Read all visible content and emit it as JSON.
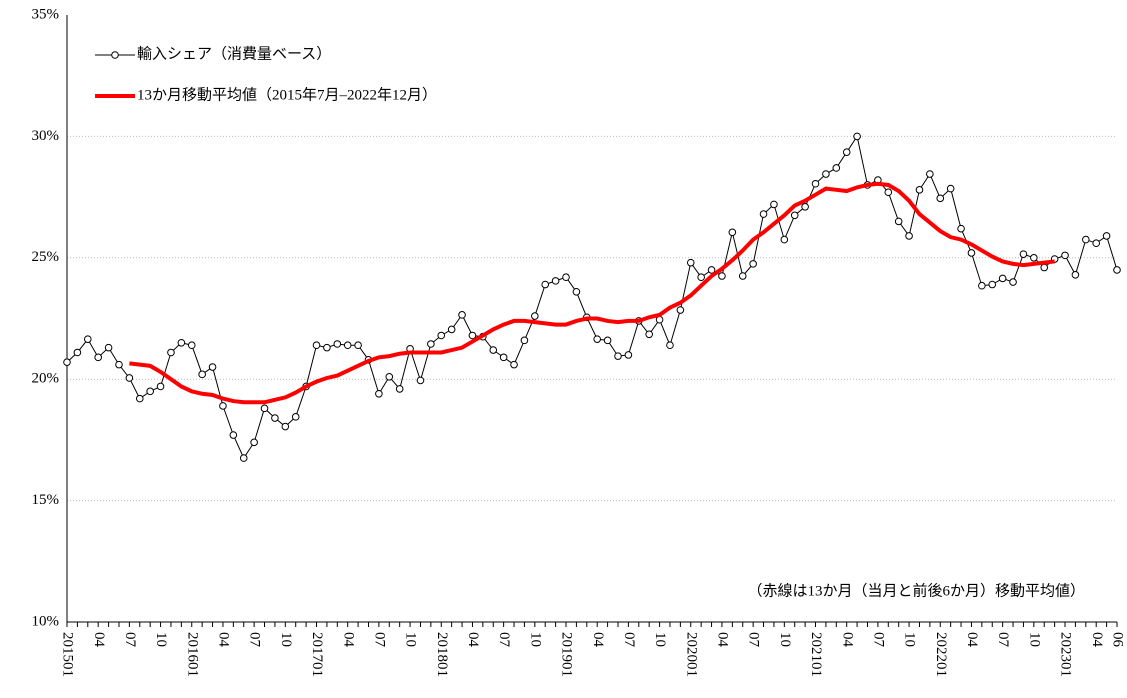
{
  "chart_data": {
    "type": "line",
    "categories": [
      "201501",
      null,
      null,
      "04",
      null,
      null,
      "07",
      null,
      null,
      "10",
      null,
      null,
      "201601",
      null,
      null,
      "04",
      null,
      null,
      "07",
      null,
      null,
      "10",
      null,
      null,
      "201701",
      null,
      null,
      "04",
      null,
      null,
      "07",
      null,
      null,
      "10",
      null,
      null,
      "201801",
      null,
      null,
      "04",
      null,
      null,
      "07",
      null,
      null,
      "10",
      null,
      null,
      "201901",
      null,
      null,
      "04",
      null,
      null,
      "07",
      null,
      null,
      "10",
      null,
      null,
      "202001",
      null,
      null,
      "04",
      null,
      null,
      "07",
      null,
      null,
      "10",
      null,
      null,
      "202101",
      null,
      null,
      "04",
      null,
      null,
      "07",
      null,
      null,
      "10",
      null,
      null,
      "202201",
      null,
      null,
      "04",
      null,
      null,
      "07",
      null,
      null,
      "10",
      null,
      null,
      "202301",
      null,
      null,
      "04",
      null,
      "06"
    ],
    "series": [
      {
        "name": "輸入シェア（消費量ベース）",
        "color": "#000000",
        "markers": true,
        "values": [
          20.7,
          21.1,
          21.65,
          20.9,
          21.3,
          20.6,
          20.05,
          19.2,
          19.5,
          19.7,
          21.1,
          21.5,
          21.4,
          20.2,
          20.5,
          18.9,
          17.7,
          16.75,
          17.4,
          18.8,
          18.4,
          18.05,
          18.45,
          19.7,
          21.4,
          21.3,
          21.45,
          21.4,
          21.4,
          20.8,
          19.4,
          20.1,
          19.6,
          21.25,
          19.95,
          21.45,
          21.8,
          22.05,
          22.65,
          21.8,
          21.75,
          21.2,
          20.9,
          20.6,
          21.6,
          22.6,
          23.9,
          24.05,
          24.2,
          23.6,
          22.55,
          21.65,
          21.6,
          20.95,
          21.0,
          22.4,
          21.85,
          22.45,
          21.4,
          22.85,
          24.8,
          24.2,
          24.5,
          24.25,
          26.05,
          24.25,
          24.75,
          26.8,
          27.2,
          25.75,
          26.75,
          27.1,
          28.05,
          28.45,
          28.7,
          29.35,
          30.0,
          28.0,
          28.2,
          27.7,
          26.5,
          25.9,
          27.8,
          28.45,
          27.45,
          27.85,
          26.2,
          25.2,
          23.85,
          23.9,
          24.15,
          24.0,
          25.15,
          25.0,
          24.6,
          24.95,
          25.1,
          24.3,
          25.75,
          25.6,
          25.9,
          24.5
        ]
      },
      {
        "name": "13か月移動平均値（2015年7月–2022年12月）",
        "color": "#ff0000",
        "markers": false,
        "values": [
          null,
          null,
          null,
          null,
          null,
          null,
          20.65,
          20.6,
          20.55,
          20.3,
          20.0,
          19.7,
          19.5,
          19.4,
          19.35,
          19.2,
          19.1,
          19.05,
          19.05,
          19.05,
          19.15,
          19.25,
          19.45,
          19.7,
          19.9,
          20.05,
          20.15,
          20.35,
          20.55,
          20.75,
          20.9,
          20.95,
          21.05,
          21.1,
          21.1,
          21.1,
          21.1,
          21.2,
          21.3,
          21.55,
          21.8,
          22.05,
          22.25,
          22.4,
          22.4,
          22.35,
          22.3,
          22.25,
          22.25,
          22.4,
          22.5,
          22.5,
          22.4,
          22.35,
          22.4,
          22.4,
          22.55,
          22.65,
          22.95,
          23.15,
          23.45,
          23.85,
          24.25,
          24.55,
          24.9,
          25.3,
          25.75,
          26.05,
          26.4,
          26.75,
          27.15,
          27.35,
          27.6,
          27.85,
          27.8,
          27.75,
          27.9,
          28.0,
          28.05,
          28.0,
          27.75,
          27.35,
          26.8,
          26.45,
          26.1,
          25.85,
          25.75,
          25.55,
          25.3,
          25.05,
          24.85,
          24.75,
          24.7,
          24.75,
          24.8,
          24.85,
          null,
          null,
          null,
          null,
          null,
          null
        ]
      }
    ],
    "ylim": [
      10,
      35
    ],
    "yticks": [
      {
        "value": 10,
        "label": "10%"
      },
      {
        "value": 15,
        "label": "15%"
      },
      {
        "value": 20,
        "label": "20%"
      },
      {
        "value": 25,
        "label": "25%"
      },
      {
        "value": 30,
        "label": "30%"
      },
      {
        "value": 35,
        "label": "35%"
      }
    ],
    "grid": true,
    "legend": "upper left",
    "annotation": "（赤線は13か月（当月と前後6か月）移動平均値）"
  }
}
